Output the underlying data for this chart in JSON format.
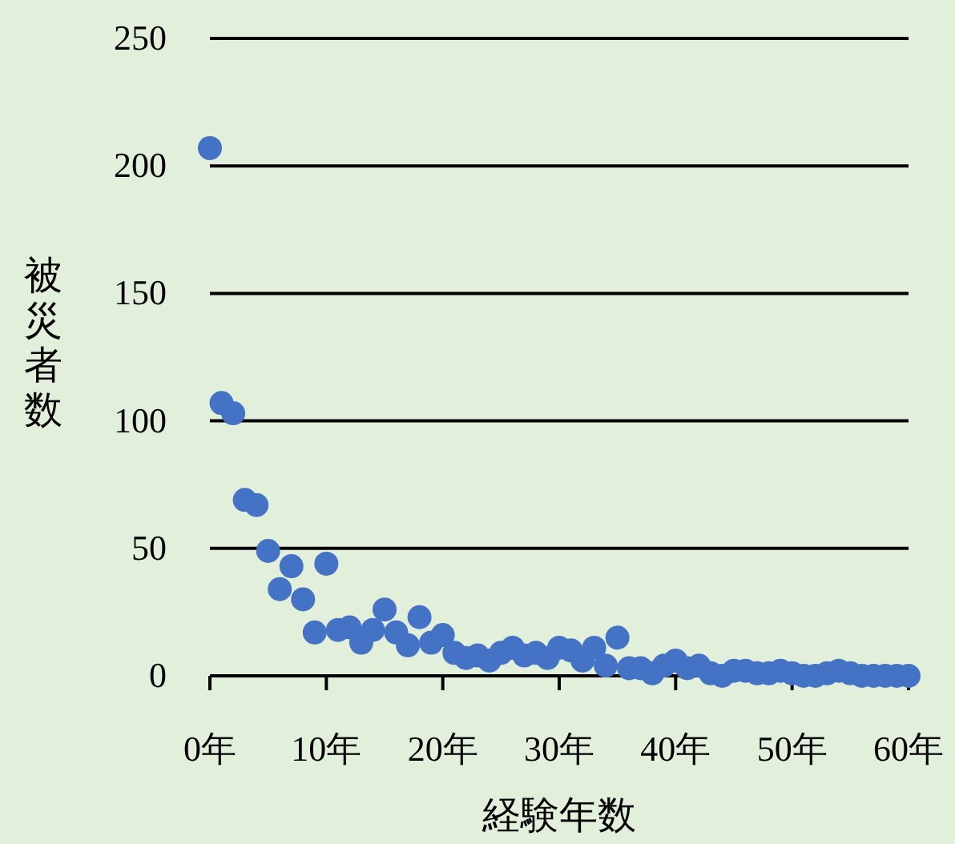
{
  "chart_data": {
    "type": "scatter",
    "xlabel": "経験年数",
    "ylabel": "被災者数",
    "x": [
      0,
      1,
      2,
      3,
      4,
      5,
      6,
      7,
      8,
      9,
      10,
      11,
      12,
      13,
      14,
      15,
      16,
      17,
      18,
      19,
      20,
      21,
      22,
      23,
      24,
      25,
      26,
      27,
      28,
      29,
      30,
      31,
      32,
      33,
      34,
      35,
      36,
      37,
      38,
      39,
      40,
      41,
      42,
      43,
      44,
      45,
      46,
      47,
      48,
      49,
      50,
      51,
      52,
      53,
      54,
      55,
      56,
      57,
      58,
      59,
      60
    ],
    "values": [
      207,
      107,
      103,
      69,
      67,
      49,
      34,
      43,
      30,
      17,
      44,
      18,
      19,
      13,
      18,
      26,
      17,
      12,
      23,
      13,
      16,
      9,
      7,
      8,
      6,
      9,
      11,
      8,
      9,
      7,
      11,
      10,
      6,
      11,
      4,
      15,
      3,
      3,
      1,
      4,
      6,
      3,
      4,
      1,
      0,
      2,
      2,
      1,
      1,
      2,
      1,
      0,
      0,
      1,
      2,
      1,
      0,
      0,
      0,
      0,
      0
    ],
    "color": "#4472c4",
    "marker": "circle",
    "grid": "y",
    "xlim": [
      0,
      60
    ],
    "ylim": [
      0,
      250
    ],
    "xticks": [
      {
        "value": 0,
        "label": "0年"
      },
      {
        "value": 10,
        "label": "10年"
      },
      {
        "value": 20,
        "label": "20年"
      },
      {
        "value": 30,
        "label": "30年"
      },
      {
        "value": 40,
        "label": "40年"
      },
      {
        "value": 50,
        "label": "50年"
      },
      {
        "value": 60,
        "label": "60年"
      }
    ],
    "yticks": [
      0,
      50,
      100,
      150,
      200,
      250
    ]
  }
}
